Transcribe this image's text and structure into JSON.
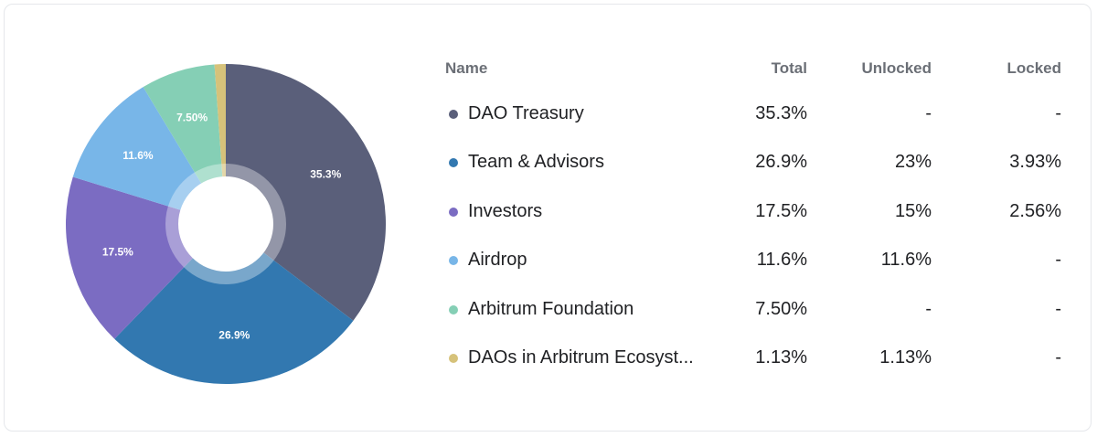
{
  "chart_data": {
    "type": "pie",
    "variant": "donut",
    "categories": [
      "DAO Treasury",
      "Team & Advisors",
      "Investors",
      "Airdrop",
      "Arbitrum Foundation",
      "DAOs in Arbitrum Ecosystem"
    ],
    "values": [
      35.3,
      26.9,
      17.5,
      11.6,
      7.5,
      1.13
    ],
    "labels": [
      "35.3%",
      "26.9%",
      "17.5%",
      "11.6%",
      "7.50%",
      ""
    ],
    "colors": [
      "#5a5f7a",
      "#3278b0",
      "#7b6cc2",
      "#78b6e8",
      "#85cfb5",
      "#d6c27a"
    ]
  },
  "table": {
    "headers": {
      "name": "Name",
      "total": "Total",
      "unlocked": "Unlocked",
      "locked": "Locked"
    },
    "rows": [
      {
        "name": "DAO Treasury",
        "total": "35.3%",
        "unlocked": "-",
        "locked": "-",
        "color": "#5a5f7a"
      },
      {
        "name": "Team & Advisors",
        "total": "26.9%",
        "unlocked": "23%",
        "locked": "3.93%",
        "color": "#3278b0"
      },
      {
        "name": "Investors",
        "total": "17.5%",
        "unlocked": "15%",
        "locked": "2.56%",
        "color": "#7b6cc2"
      },
      {
        "name": "Airdrop",
        "total": "11.6%",
        "unlocked": "11.6%",
        "locked": "-",
        "color": "#78b6e8"
      },
      {
        "name": "Arbitrum Foundation",
        "total": "7.50%",
        "unlocked": "-",
        "locked": "-",
        "color": "#85cfb5"
      },
      {
        "name": "DAOs in Arbitrum Ecosyst...",
        "total": "1.13%",
        "unlocked": "1.13%",
        "locked": "-",
        "color": "#d6c27a"
      }
    ]
  }
}
